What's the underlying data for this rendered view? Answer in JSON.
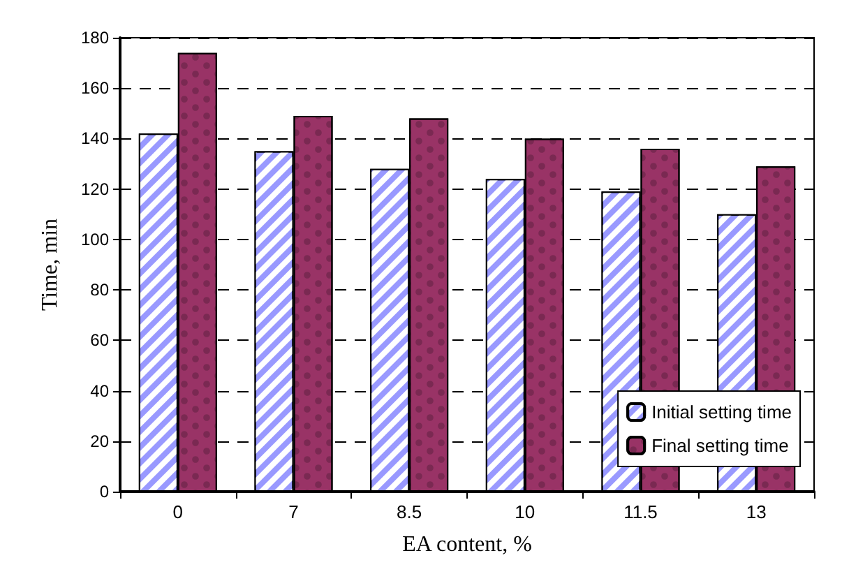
{
  "chart_data": {
    "type": "bar",
    "xlabel": "EA content, %",
    "ylabel": "Time, min",
    "categories": [
      "0",
      "7",
      "8.5",
      "10",
      "11.5",
      "13"
    ],
    "series": [
      {
        "name": "Initial setting time",
        "color": "#9999ff",
        "values": [
          142,
          135,
          128,
          124,
          119,
          110
        ]
      },
      {
        "name": "Final setting time",
        "color": "#993366",
        "values": [
          174,
          149,
          148,
          140,
          136,
          129
        ]
      }
    ],
    "ylim": [
      0,
      180
    ],
    "yticks": [
      0,
      20,
      40,
      60,
      80,
      100,
      120,
      140,
      160,
      180
    ],
    "grid": "y",
    "legend": "bottom right"
  }
}
